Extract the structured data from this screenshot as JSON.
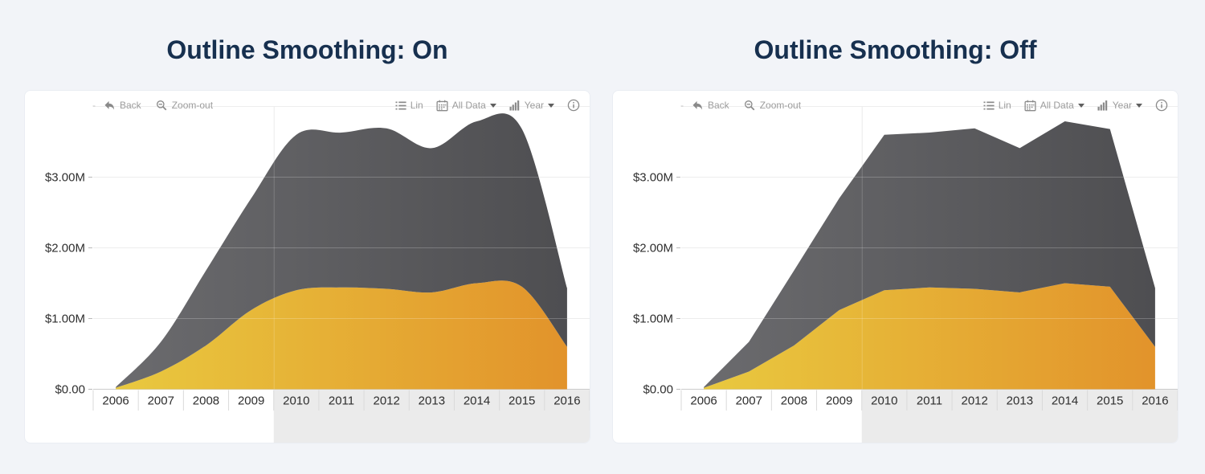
{
  "page": {
    "background": "#f2f4f8"
  },
  "panels": [
    {
      "title": "Outline Smoothing: On"
    },
    {
      "title": "Outline Smoothing: Off"
    }
  ],
  "toolbar": {
    "back_label": "Back",
    "zoom_out_label": "Zoom-out",
    "lin_label": "Lin",
    "all_data_label": "All Data",
    "year_label": "Year",
    "icons": [
      "back-icon",
      "zoom-out-icon",
      "list-icon",
      "calendar-icon",
      "bar-chart-icon",
      "caret-down-icon",
      "info-icon"
    ]
  },
  "chart_data": [
    {
      "type": "area",
      "stacked": true,
      "smoothing": "on",
      "title": "Outline Smoothing: On",
      "categories": [
        "2006",
        "2007",
        "2008",
        "2009",
        "2010",
        "2011",
        "2012",
        "2013",
        "2014",
        "2015",
        "2016"
      ],
      "series": [
        {
          "name": "lower-area-yellow",
          "values": [
            0.02,
            0.25,
            0.62,
            1.12,
            1.4,
            1.44,
            1.42,
            1.37,
            1.5,
            1.45,
            0.6
          ],
          "gradient_start": "#e9c93f",
          "gradient_end": "#e2932b"
        },
        {
          "name": "upper-area-gray",
          "values": [
            0.01,
            0.42,
            1.06,
            1.58,
            2.2,
            2.19,
            2.27,
            2.04,
            2.29,
            2.23,
            0.83
          ],
          "gradient_start": "#6b6b6e",
          "gradient_end": "#4e4e51"
        }
      ],
      "totals": [
        0.03,
        0.67,
        1.68,
        2.7,
        3.6,
        3.63,
        3.69,
        3.41,
        3.79,
        3.68,
        1.43
      ],
      "unit": "USD millions",
      "ylabel_ticks": [
        "$0.00",
        "$1.00M",
        "$2.00M",
        "$3.00M"
      ],
      "ylim": [
        0,
        4.0
      ],
      "grid": true,
      "legend": "none",
      "highlight_band_start_category": "2010",
      "highlight_band_color": "#ebebeb"
    },
    {
      "type": "area",
      "stacked": true,
      "smoothing": "off",
      "title": "Outline Smoothing: Off",
      "categories": [
        "2006",
        "2007",
        "2008",
        "2009",
        "2010",
        "2011",
        "2012",
        "2013",
        "2014",
        "2015",
        "2016"
      ],
      "series": [
        {
          "name": "lower-area-yellow",
          "values": [
            0.02,
            0.25,
            0.62,
            1.12,
            1.4,
            1.44,
            1.42,
            1.37,
            1.5,
            1.45,
            0.6
          ],
          "gradient_start": "#e9c93f",
          "gradient_end": "#e2932b"
        },
        {
          "name": "upper-area-gray",
          "values": [
            0.01,
            0.42,
            1.06,
            1.58,
            2.2,
            2.19,
            2.27,
            2.04,
            2.29,
            2.23,
            0.83
          ],
          "gradient_start": "#6b6b6e",
          "gradient_end": "#4e4e51"
        }
      ],
      "totals": [
        0.03,
        0.67,
        1.68,
        2.7,
        3.6,
        3.63,
        3.69,
        3.41,
        3.79,
        3.68,
        1.43
      ],
      "unit": "USD millions",
      "ylabel_ticks": [
        "$0.00",
        "$1.00M",
        "$2.00M",
        "$3.00M"
      ],
      "ylim": [
        0,
        4.0
      ],
      "grid": true,
      "legend": "none",
      "highlight_band_start_category": "2010",
      "highlight_band_color": "#ebebeb"
    }
  ]
}
